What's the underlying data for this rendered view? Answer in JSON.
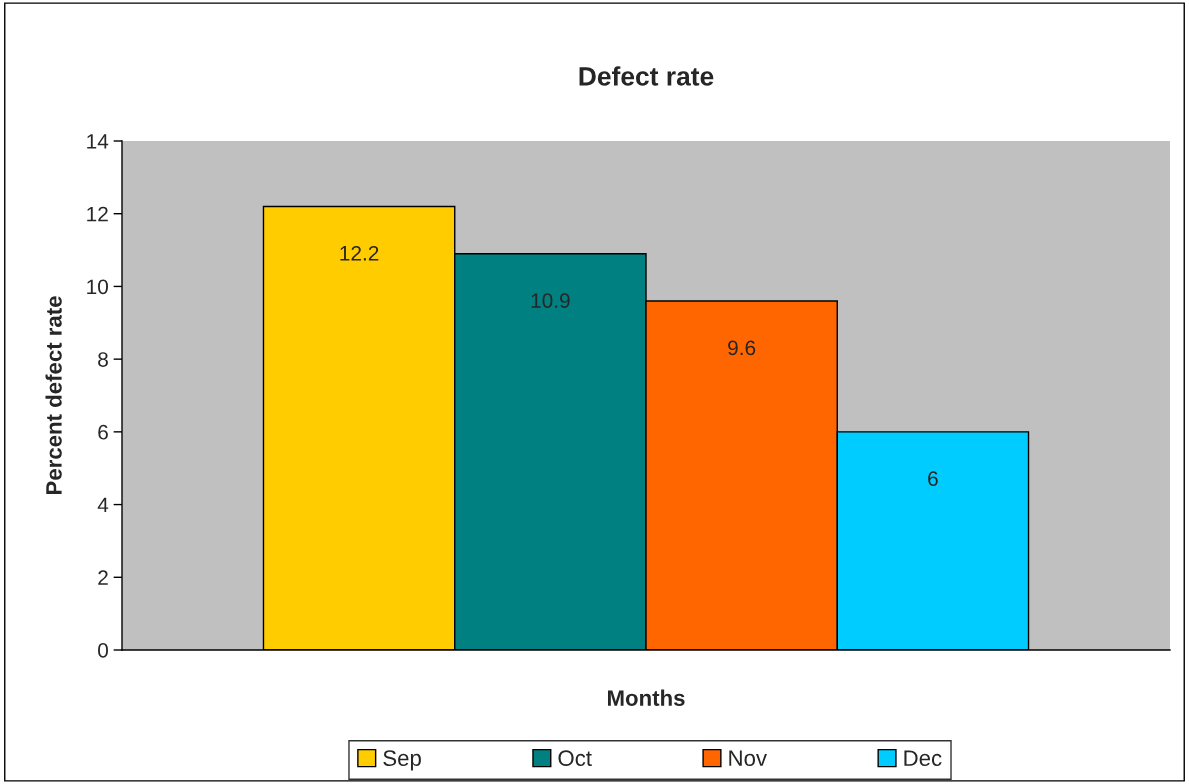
{
  "chart_data": {
    "type": "bar",
    "title": "Defect rate",
    "xlabel": "Months",
    "ylabel": "Percent defect rate",
    "categories": [
      null
    ],
    "series": [
      {
        "name": "Sep",
        "color": "#ffcc00",
        "values": [
          12.2
        ]
      },
      {
        "name": "Oct",
        "color": "#008080",
        "values": [
          10.9
        ]
      },
      {
        "name": "Nov",
        "color": "#ff6600",
        "values": [
          9.6
        ]
      },
      {
        "name": "Dec",
        "color": "#00ccff",
        "values": [
          6
        ]
      }
    ],
    "ylim": [
      0,
      14
    ],
    "yticks": [
      0,
      2,
      4,
      6,
      8,
      10,
      12,
      14
    ],
    "grid": false,
    "legend": "bottom",
    "data_labels": true
  }
}
